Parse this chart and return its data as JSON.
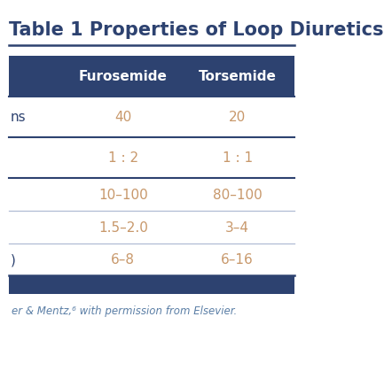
{
  "full_title": "Table 1 Properties of Loop Diuretics",
  "header_bg": "#2d4270",
  "header_text_color": "#ffffff",
  "data_text_color": "#c8986b",
  "row_label_color": "#2d4270",
  "bg_color": "#ffffff",
  "title_color": "#2d4270",
  "footer_color": "#5b7fa6",
  "header_row": [
    "",
    "Furosemide",
    "Torsemide"
  ],
  "rows": [
    [
      "ns",
      "40",
      "20"
    ],
    [
      "",
      "1 : 2",
      "1 : 1"
    ],
    [
      "",
      "10–100",
      "80–100"
    ],
    [
      "",
      "1.5–2.0",
      "3–4"
    ],
    [
      ")",
      "6–8",
      "6–16"
    ]
  ],
  "footer": "er & Mentz,⁶ with permission from Elsevier.",
  "title_fontsize": 15,
  "header_fontsize": 11,
  "data_fontsize": 11,
  "footer_fontsize": 8.5,
  "divider_color_major": "#2d4270",
  "divider_color_minor": "#b0bcd4"
}
